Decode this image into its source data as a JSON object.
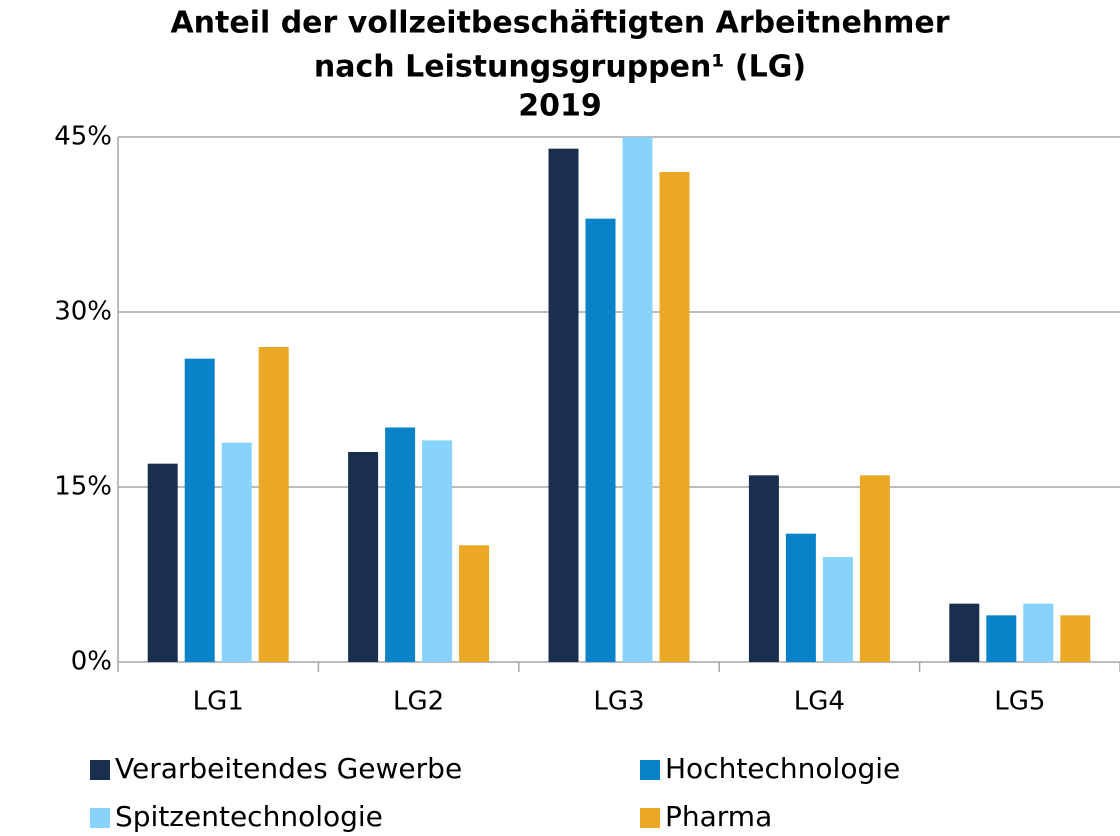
{
  "chart_data": {
    "type": "bar",
    "title": [
      "Anteil der vollzeitbeschäftigten Arbeitnehmer",
      "nach Leistungsgruppen¹ (LG)",
      "2019"
    ],
    "categories": [
      "LG1",
      "LG2",
      "LG3",
      "LG4",
      "LG5"
    ],
    "series": [
      {
        "name": "Verarbeitendes Gewerbe",
        "color": "#1a2f4f",
        "values": [
          17,
          18,
          44,
          16,
          5
        ]
      },
      {
        "name": "Hochtechnologie",
        "color": "#0882c8",
        "values": [
          26,
          20.1,
          38,
          11,
          4
        ]
      },
      {
        "name": "Spitzentechnologie",
        "color": "#87d3fb",
        "values": [
          18.8,
          19,
          45,
          9,
          5
        ]
      },
      {
        "name": "Pharma",
        "color": "#eba824",
        "values": [
          27,
          10,
          42,
          16,
          4
        ]
      }
    ],
    "ylim": [
      0,
      45
    ],
    "yticks": [
      {
        "value": 0,
        "label": "0%"
      },
      {
        "value": 15,
        "label": "15%"
      },
      {
        "value": 30,
        "label": "30%"
      },
      {
        "value": 45,
        "label": "45%"
      }
    ],
    "grid": true
  }
}
